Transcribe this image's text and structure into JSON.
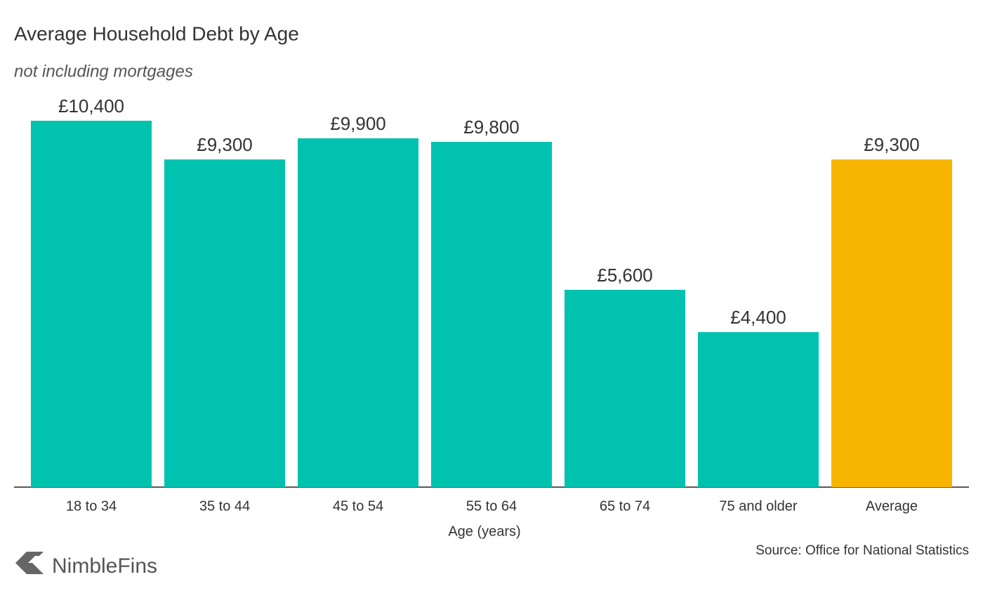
{
  "chart_data": {
    "type": "bar",
    "title": "Average Household Debt by Age",
    "subtitle": "not including mortgages",
    "x_label": "Age (years)",
    "categories": [
      "18 to 34",
      "35 to 44",
      "45 to 54",
      "55 to 64",
      "65 to 74",
      "75 and older",
      "Average"
    ],
    "values": [
      10400,
      9300,
      9900,
      9800,
      5600,
      4400,
      9300
    ],
    "value_labels": [
      "£10,400",
      "£9,300",
      "£9,900",
      "£9,800",
      "£5,600",
      "£4,400",
      "£9,300"
    ],
    "colors": [
      "#00c2ae",
      "#00c2ae",
      "#00c2ae",
      "#00c2ae",
      "#00c2ae",
      "#00c2ae",
      "#f7b500"
    ],
    "source": "Source: Office for National Statistics"
  },
  "logo": "NimbleFins"
}
